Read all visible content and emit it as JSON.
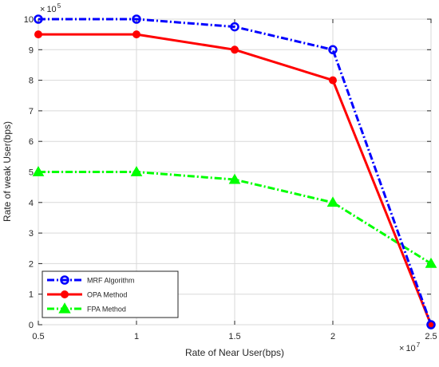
{
  "chart_data": {
    "type": "line",
    "title": "",
    "xlabel": "Rate of Near User(bps)",
    "ylabel": "Rate of weak User(bps)",
    "x_exponent": "× 10^7",
    "y_exponent": "× 10^5",
    "xlim": [
      0.5,
      2.5
    ],
    "ylim": [
      0,
      10
    ],
    "x_ticks": [
      "0.5",
      "1",
      "1.5",
      "2",
      "2.5"
    ],
    "y_ticks": [
      "0",
      "1",
      "2",
      "3",
      "4",
      "5",
      "6",
      "7",
      "8",
      "9",
      "10"
    ],
    "grid": true,
    "legend_position": "bottom-left",
    "x": [
      0.5,
      1,
      1.5,
      2,
      2.5
    ],
    "series": [
      {
        "name": "MRF Algorithm",
        "values": [
          10,
          10,
          9.75,
          9,
          0
        ],
        "color": "#0000ff",
        "line_style": "dash-dot",
        "marker": "circle-open"
      },
      {
        "name": "OPA Method",
        "values": [
          9.5,
          9.5,
          9,
          8,
          0
        ],
        "color": "#ff0000",
        "line_style": "solid",
        "marker": "circle-filled"
      },
      {
        "name": "FPA Method",
        "values": [
          5,
          5,
          4.75,
          4,
          2
        ],
        "color": "#00ff00",
        "line_style": "dash-dot",
        "marker": "triangle"
      }
    ]
  }
}
